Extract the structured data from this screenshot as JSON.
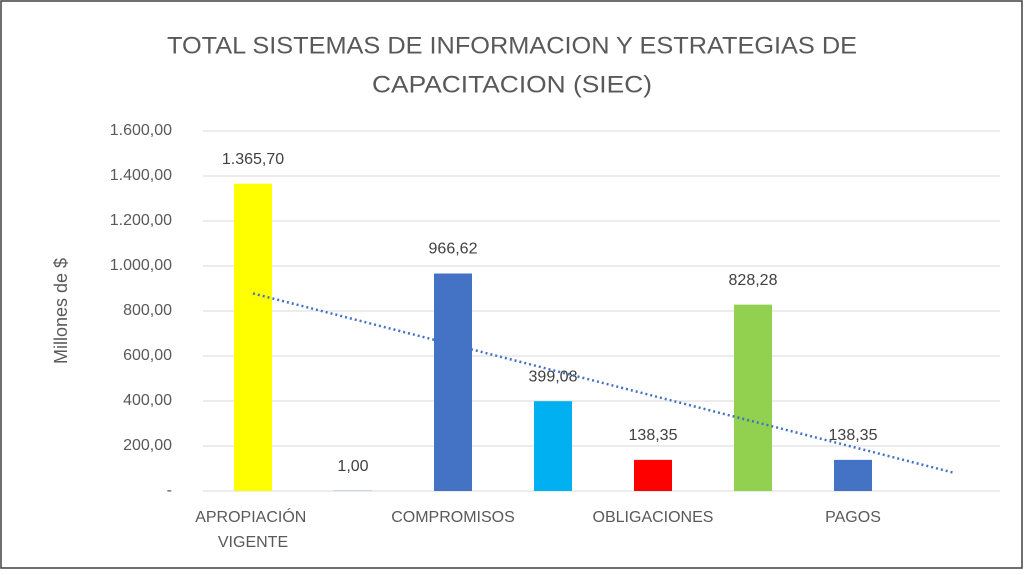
{
  "chart_data": {
    "type": "bar",
    "title": [
      "TOTAL SISTEMAS  DE INFORMACION Y ESTRATEGIAS DE",
      "CAPACITACION (SIEC)"
    ],
    "y_label": "Millones de $",
    "categories": [
      "APROPIACIÓN VIGENTE",
      null,
      "COMPROMISOS",
      null,
      "OBLIGACIONES",
      null,
      "PAGOS",
      null
    ],
    "values": [
      1365.7,
      1,
      966.62,
      399.08,
      138.35,
      828.28,
      138.35,
      null
    ],
    "value_labels": [
      "1.365,70",
      "1,00",
      "966,62",
      "399,08",
      "138,35",
      "828,28",
      "138,35",
      null
    ],
    "colors": [
      "#ffff00",
      "#4472c4",
      "#4472c4",
      "#00b0f0",
      "#ff0000",
      "#92d050",
      "#4472c4",
      null
    ],
    "trendline": {
      "start": 878,
      "end": 82,
      "color": "#4472c4"
    },
    "ylim": [
      0,
      1600
    ],
    "yticks": [
      {
        "value": 0,
        "label": "-"
      },
      {
        "value": 200,
        "label": "200,00"
      },
      {
        "value": 400,
        "label": "400,00"
      },
      {
        "value": 600,
        "label": "600,00"
      },
      {
        "value": 800,
        "label": "800,00"
      },
      {
        "value": 1000,
        "label": "1.000,00"
      },
      {
        "value": 1200,
        "label": "1.200,00"
      },
      {
        "value": 1400,
        "label": "1.400,00"
      },
      {
        "value": 1600,
        "label": "1.600,00"
      }
    ],
    "grid": true
  }
}
